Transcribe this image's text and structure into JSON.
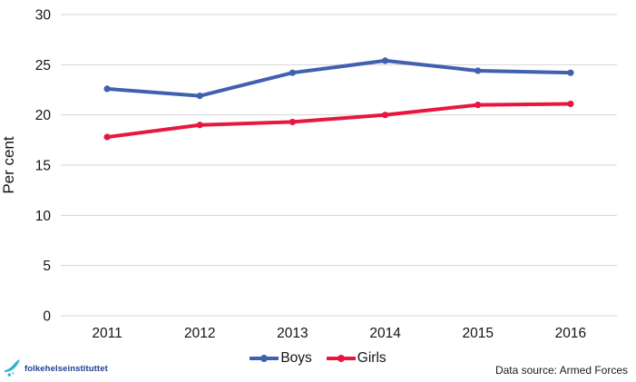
{
  "chart_data": {
    "type": "line",
    "x": [
      "2011",
      "2012",
      "2013",
      "2014",
      "2015",
      "2016"
    ],
    "series": [
      {
        "name": "Boys",
        "color": "#4161AE",
        "values": [
          22.6,
          21.9,
          24.2,
          25.4,
          24.4,
          24.2
        ]
      },
      {
        "name": "Girls",
        "color": "#E8173F",
        "values": [
          17.8,
          19.0,
          19.3,
          20.0,
          21.0,
          21.1
        ]
      }
    ],
    "title": "",
    "xlabel": "",
    "ylabel": "Per cent",
    "ylim": [
      0,
      30
    ],
    "ytick_step": 5,
    "grid": true,
    "legend_position": "bottom"
  },
  "footer": {
    "logo_text": "folkehelseinstituttet",
    "logo_icon": "fhi-swoosh-icon",
    "data_source": "Data source: Armed Forces"
  },
  "colors": {
    "gridline": "#D6D6D6",
    "axis_text": "#141414",
    "background": "#FFFFFF",
    "logo_text": "#1F3E8F",
    "logo_icon": "#2FB3CB"
  }
}
